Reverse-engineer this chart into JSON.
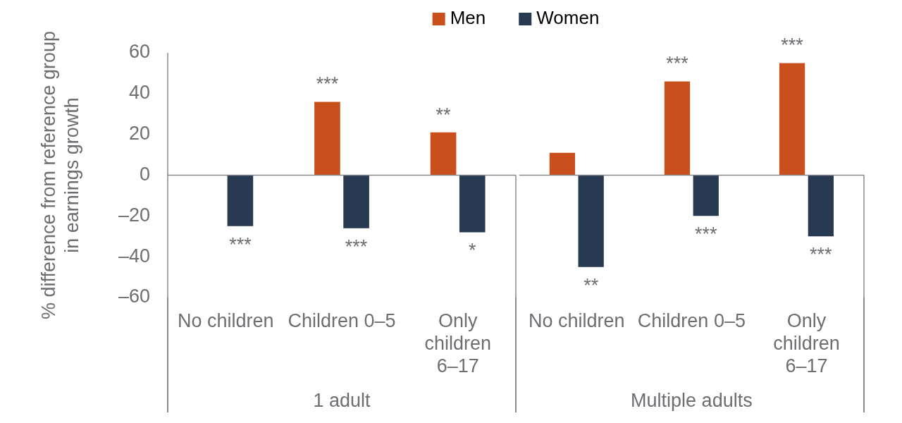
{
  "chart_data": [
    {
      "type": "bar",
      "xlabel": "1 adult",
      "ylabel": "% difference from reference group in earnings growth",
      "categories": [
        "No children",
        "Children 0–5",
        "Only children 6–17"
      ],
      "series": [
        {
          "name": "Men",
          "color": "#c9501c",
          "values": [
            null,
            36,
            21
          ],
          "value_labels": [
            null,
            "***",
            "**"
          ]
        },
        {
          "name": "Women",
          "color": "#283a52",
          "values": [
            -25,
            -26,
            -28
          ],
          "value_labels": [
            "***",
            "***",
            "*"
          ]
        }
      ],
      "ylim": [
        -60,
        60
      ],
      "yticks": [
        {
          "value": -60,
          "label": "–60"
        },
        {
          "value": -40,
          "label": "–40"
        },
        {
          "value": -20,
          "label": "–20"
        },
        0,
        20,
        40,
        60
      ],
      "legend": "top"
    },
    {
      "type": "bar",
      "xlabel": "Multiple adults",
      "categories": [
        "No children",
        "Children 0–5",
        "Only children 6–17"
      ],
      "series": [
        {
          "color": "#c9501c",
          "values": [
            11,
            46,
            55
          ],
          "value_labels": [
            null,
            "***",
            "***"
          ]
        },
        {
          "color": "#283a52",
          "values": [
            -45,
            -20,
            -30
          ],
          "value_labels": [
            "**",
            "***",
            "***"
          ]
        }
      ],
      "ylim": [
        -60,
        60
      ],
      "tick_labels": "x"
    }
  ]
}
